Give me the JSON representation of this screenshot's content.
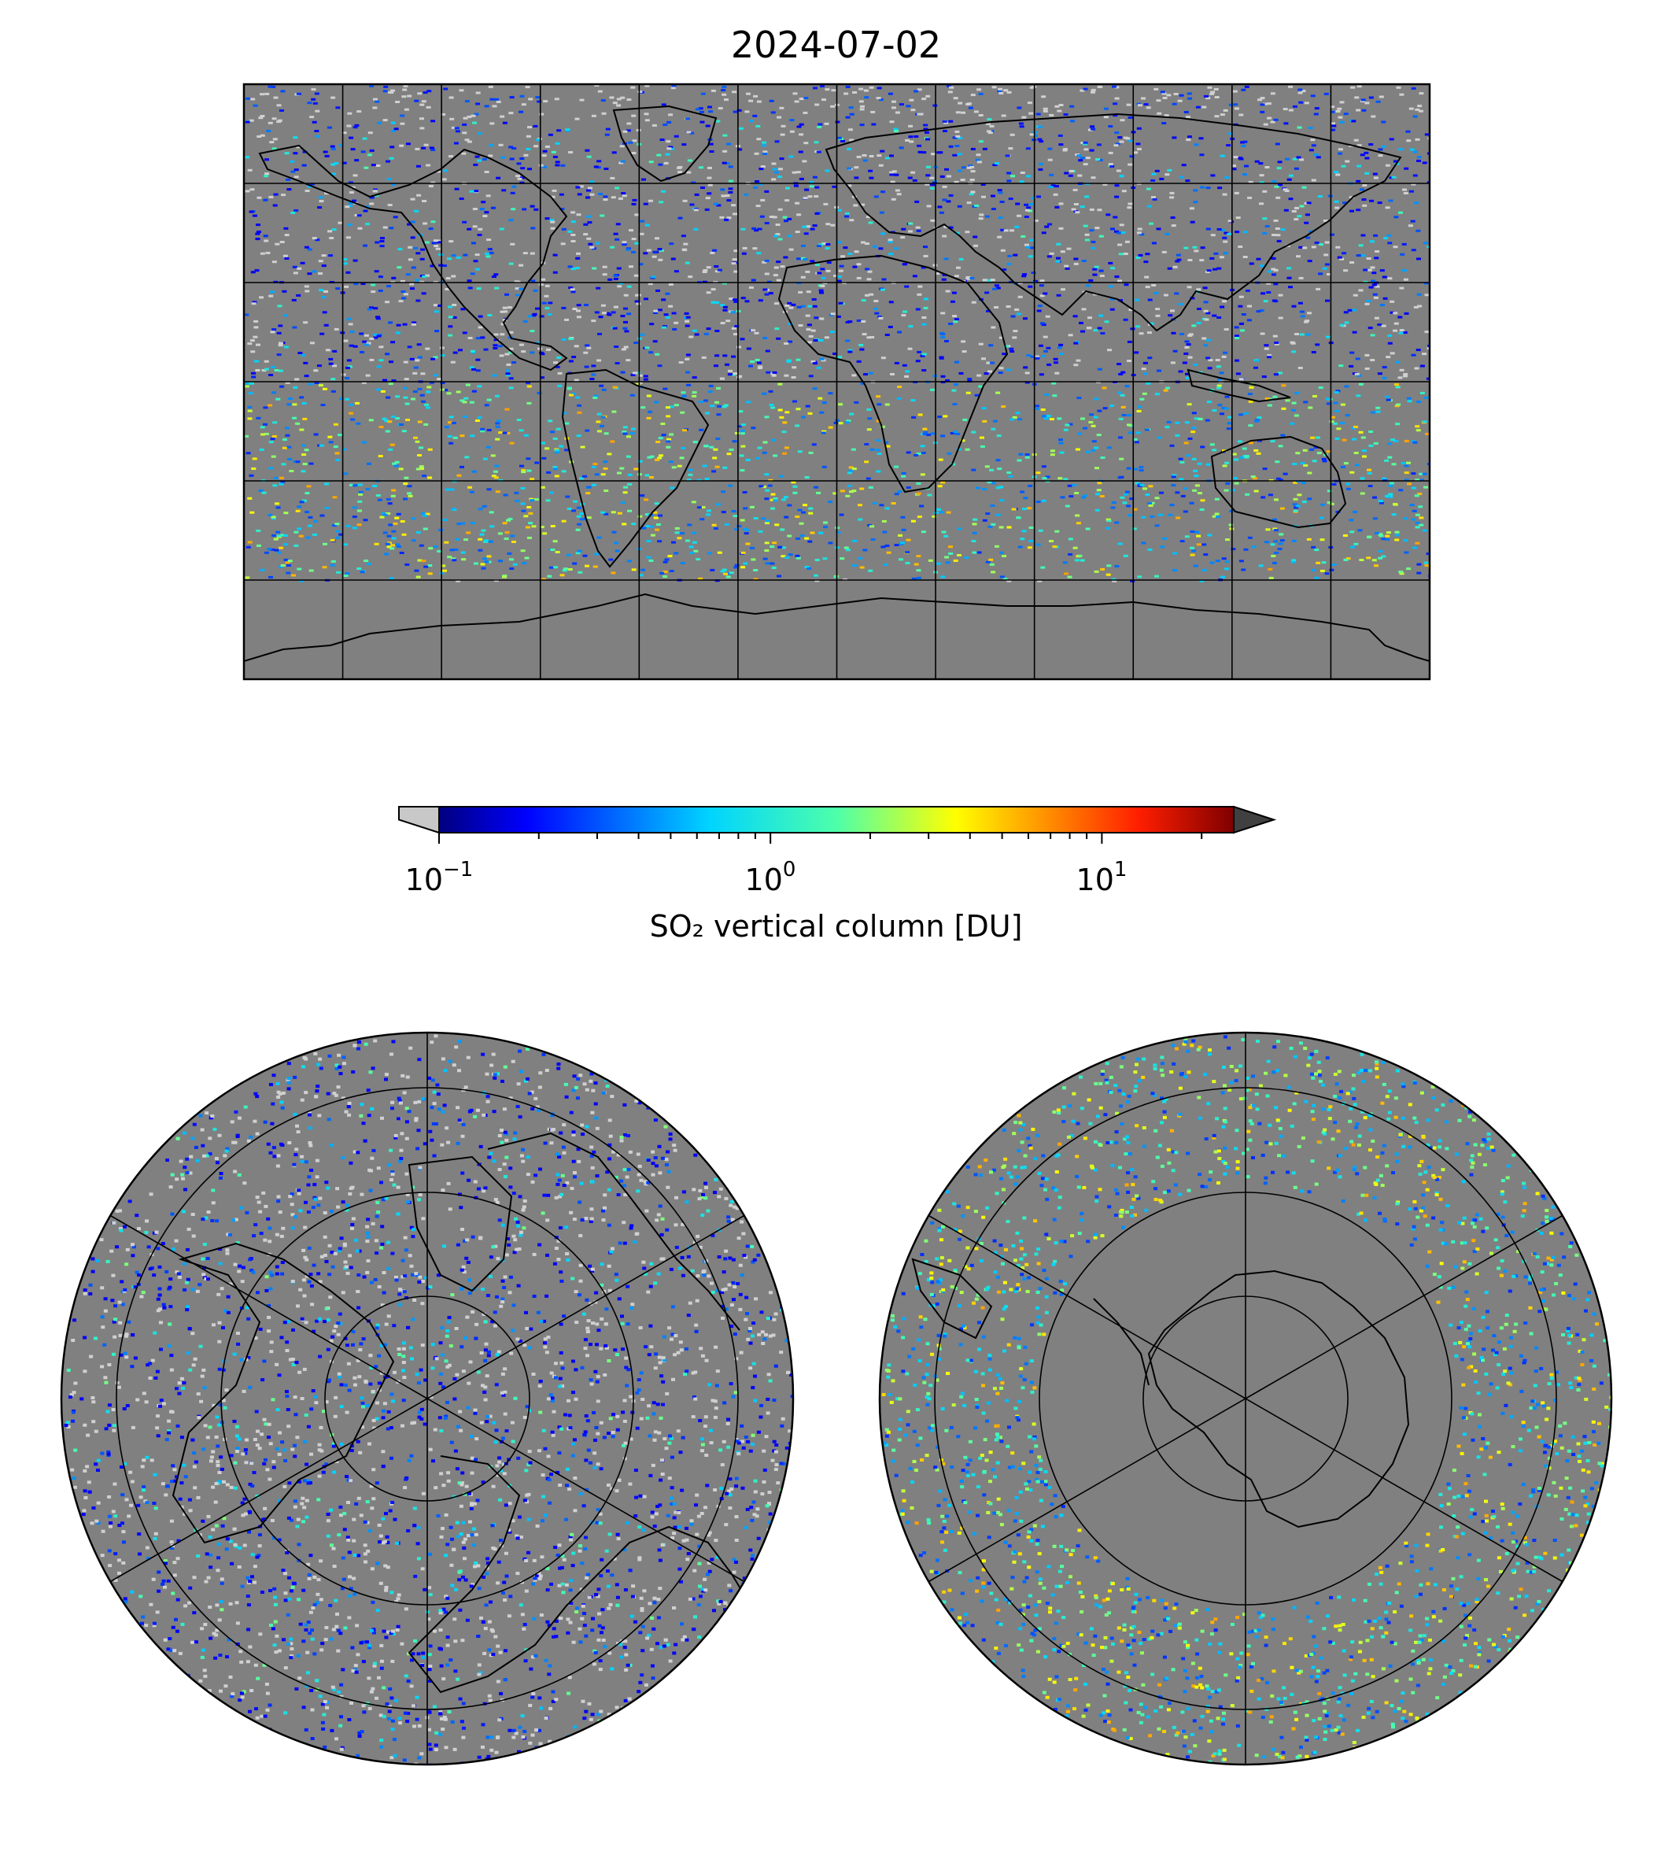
{
  "title": "2024-07-02",
  "colorbar": {
    "label": "SO₂ vertical column [DU]",
    "scale": "log",
    "range": [
      0.1,
      25
    ],
    "ticks": [
      {
        "base": "10",
        "exp": "−1",
        "value": 0.1
      },
      {
        "base": "10",
        "exp": "0",
        "value": 1
      },
      {
        "base": "10",
        "exp": "1",
        "value": 10
      }
    ],
    "colormap": "jet",
    "under_color": "#c8c8c8",
    "over_color": "#404040"
  },
  "maps": [
    {
      "name": "global-map",
      "projection": "equirectangular",
      "gridlines_lon_step": 30,
      "gridlines_lat_step": 30
    },
    {
      "name": "north-polar-map",
      "projection": "north-polar-stereographic"
    },
    {
      "name": "south-polar-map",
      "projection": "south-polar-stereographic"
    }
  ],
  "colors": {
    "no_data": "#808080",
    "low_value": "#d0d0d0",
    "coastline": "#000000",
    "grid": "#000000"
  }
}
